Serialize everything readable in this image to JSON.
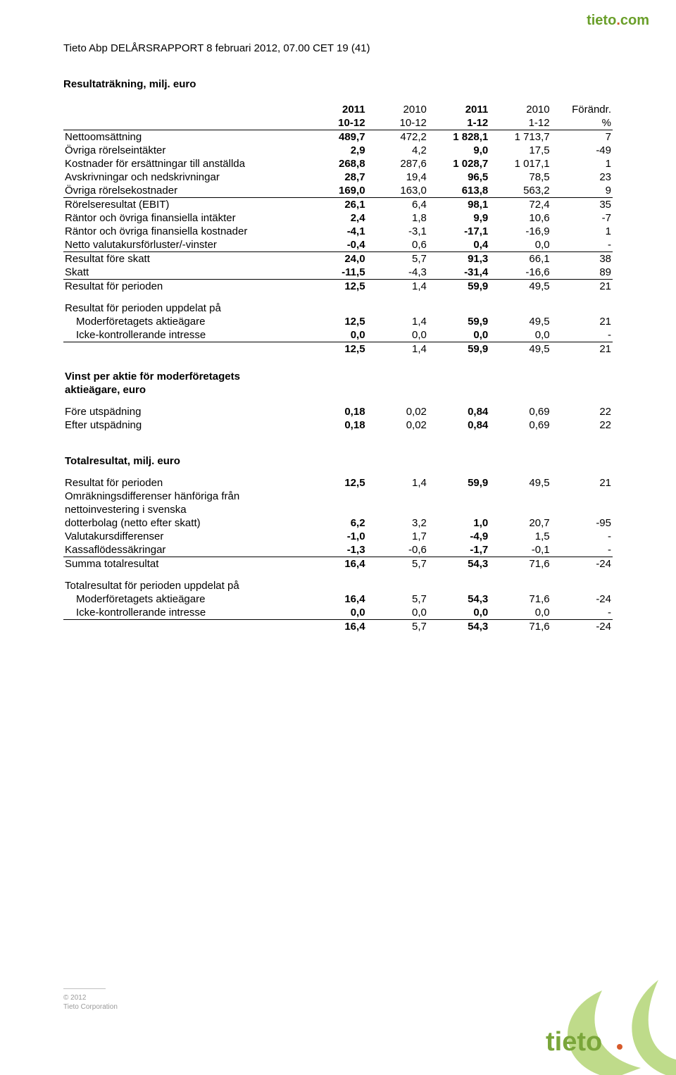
{
  "brand": {
    "name": "tieto",
    "suffix": ".com"
  },
  "doc_header": "Tieto Abp  DELÅRSRAPPORT 8 februari 2012, 07.00 CET  19 (41)",
  "columns": {
    "y1_top": "2011",
    "y1_bot": "10-12",
    "y2_top": "2010",
    "y2_bot": "10-12",
    "y3_top": "2011",
    "y3_bot": "1-12",
    "y4_top": "2010",
    "y4_bot": "1-12",
    "ch_top": "Förändr.",
    "ch_bot": "%"
  },
  "sections": {
    "income": {
      "title": "Resultaträkning, milj. euro",
      "rows": [
        {
          "label": "Nettoomsättning",
          "c": [
            "489,7",
            "472,2",
            "1 828,1",
            "1 713,7",
            "7"
          ]
        },
        {
          "label": "Övriga rörelseintäkter",
          "c": [
            "2,9",
            "4,2",
            "9,0",
            "17,5",
            "-49"
          ]
        },
        {
          "label": "Kostnader för ersättningar till anställda",
          "c": [
            "268,8",
            "287,6",
            "1 028,7",
            "1 017,1",
            "1"
          ]
        },
        {
          "label": "Avskrivningar och nedskrivningar",
          "c": [
            "28,7",
            "19,4",
            "96,5",
            "78,5",
            "23"
          ]
        },
        {
          "label": "Övriga rörelsekostnader",
          "c": [
            "169,0",
            "163,0",
            "613,8",
            "563,2",
            "9"
          ],
          "underline": true
        },
        {
          "label": "Rörelseresultat (EBIT)",
          "c": [
            "26,1",
            "6,4",
            "98,1",
            "72,4",
            "35"
          ]
        },
        {
          "label": "Räntor och övriga finansiella intäkter",
          "c": [
            "2,4",
            "1,8",
            "9,9",
            "10,6",
            "-7"
          ]
        },
        {
          "label": "Räntor och övriga finansiella kostnader",
          "c": [
            "-4,1",
            "-3,1",
            "-17,1",
            "-16,9",
            "1"
          ]
        },
        {
          "label": "Netto valutakursförluster/-vinster",
          "c": [
            "-0,4",
            "0,6",
            "0,4",
            "0,0",
            "-"
          ],
          "underline": true
        },
        {
          "label": "Resultat före skatt",
          "c": [
            "24,0",
            "5,7",
            "91,3",
            "66,1",
            "38"
          ]
        },
        {
          "label": "Skatt",
          "c": [
            "-11,5",
            "-4,3",
            "-31,4",
            "-16,6",
            "89"
          ],
          "underline": true
        },
        {
          "label": "Resultat för perioden",
          "c": [
            "12,5",
            "1,4",
            "59,9",
            "49,5",
            "21"
          ]
        }
      ],
      "split_title": "Resultat för perioden uppdelat på",
      "split_rows": [
        {
          "label": "Moderföretagets aktieägare",
          "c": [
            "12,5",
            "1,4",
            "59,9",
            "49,5",
            "21"
          ],
          "indent": true
        },
        {
          "label": "Icke-kontrollerande intresse",
          "c": [
            "0,0",
            "0,0",
            "0,0",
            "0,0",
            "-"
          ],
          "indent": true,
          "underline": true
        },
        {
          "label": "",
          "c": [
            "12,5",
            "1,4",
            "59,9",
            "49,5",
            "21"
          ]
        }
      ]
    },
    "eps": {
      "title_l1": "Vinst per aktie för moderföretagets",
      "title_l2": "aktieägare, euro",
      "rows": [
        {
          "label": "Före utspädning",
          "c": [
            "0,18",
            "0,02",
            "0,84",
            "0,69",
            "22"
          ]
        },
        {
          "label": "Efter utspädning",
          "c": [
            "0,18",
            "0,02",
            "0,84",
            "0,69",
            "22"
          ]
        }
      ]
    },
    "total": {
      "title": "Totalresultat, milj. euro",
      "rows_top": [
        {
          "label": "Resultat för perioden",
          "c": [
            "12,5",
            "1,4",
            "59,9",
            "49,5",
            "21"
          ]
        }
      ],
      "multi_label": {
        "l1": "Omräkningsdifferenser hänföriga från",
        "l2": "nettoinvestering i svenska",
        "l3": "dotterbolag (netto efter skatt)",
        "c": [
          "6,2",
          "3,2",
          "1,0",
          "20,7",
          "-95"
        ]
      },
      "rows_mid": [
        {
          "label": "Valutakursdifferenser",
          "c": [
            "-1,0",
            "1,7",
            "-4,9",
            "1,5",
            "-"
          ]
        },
        {
          "label": "Kassaflödessäkringar",
          "c": [
            "-1,3",
            "-0,6",
            "-1,7",
            "-0,1",
            "-"
          ],
          "underline": true
        },
        {
          "label": "Summa totalresultat",
          "c": [
            "16,4",
            "5,7",
            "54,3",
            "71,6",
            "-24"
          ]
        }
      ],
      "split_title": "Totalresultat för perioden uppdelat på",
      "split_rows": [
        {
          "label": "Moderföretagets aktieägare",
          "c": [
            "16,4",
            "5,7",
            "54,3",
            "71,6",
            "-24"
          ],
          "indent": true
        },
        {
          "label": "Icke-kontrollerande intresse",
          "c": [
            "0,0",
            "0,0",
            "0,0",
            "0,0",
            "-"
          ],
          "indent": true,
          "underline": true
        },
        {
          "label": "",
          "c": [
            "16,4",
            "5,7",
            "54,3",
            "71,6",
            "-24"
          ]
        }
      ]
    }
  },
  "footer": {
    "l1": "© 2012",
    "l2": "Tieto Corporation"
  },
  "colors": {
    "brand_green": "#6a9f2a",
    "brand_orange": "#d65a2b",
    "logo_leaf": "#a9cf63",
    "logo_text": "#7aa63a",
    "footer_grey": "#9a9a9a"
  }
}
